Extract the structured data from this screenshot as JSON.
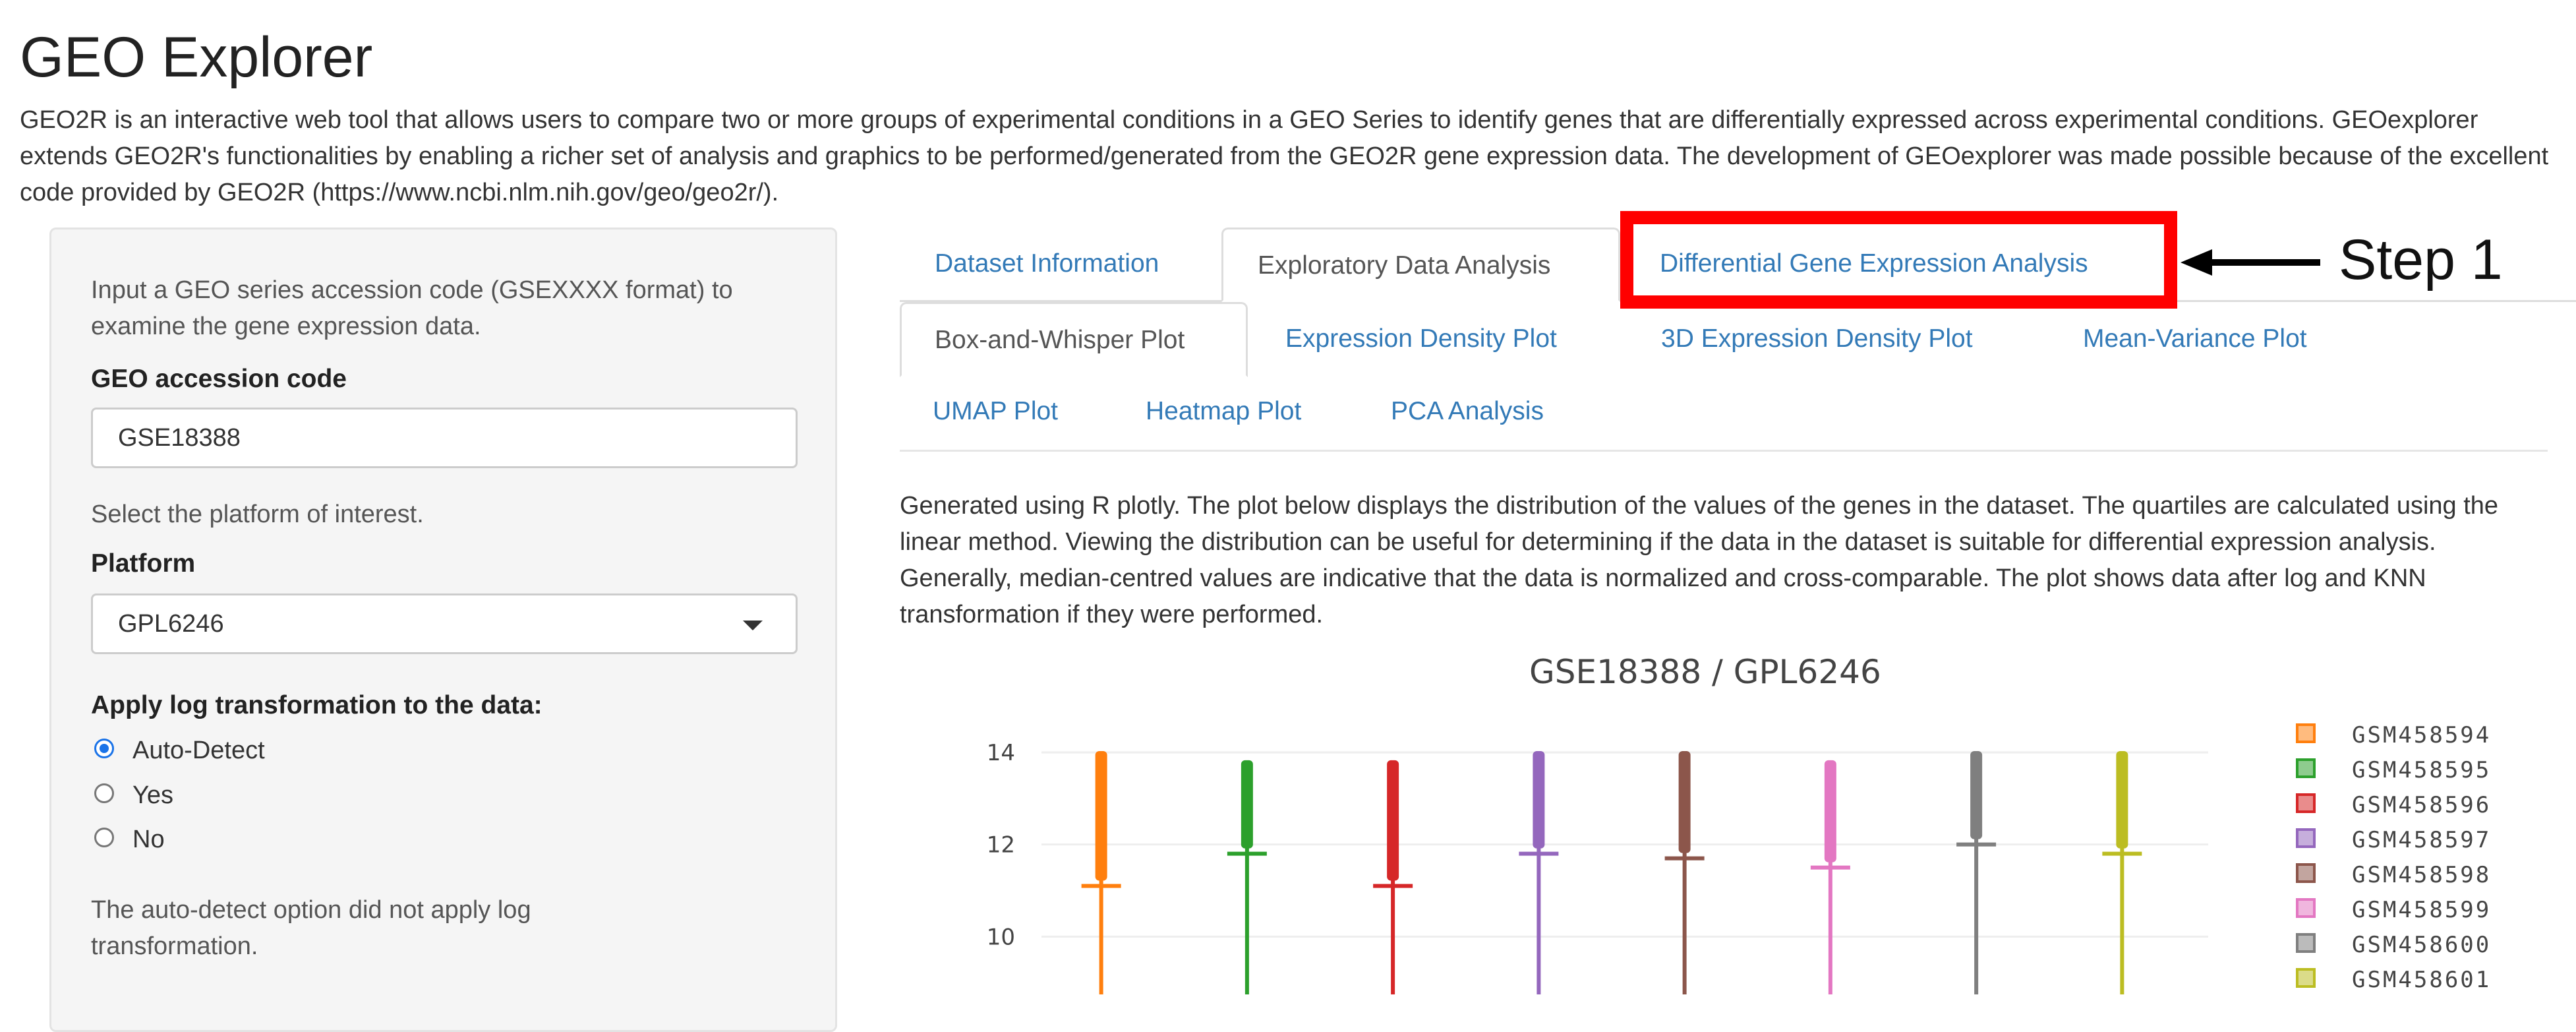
{
  "app": {
    "title": "GEO Explorer",
    "intro": "GEO2R is an interactive web tool that allows users to compare two or more groups of experimental conditions in a GEO Series to identify genes that are differentially expressed across experimental conditions. GEOexplorer extends GEO2R's functionalities by enabling a richer set of analysis and graphics to be performed/generated from the GEO2R gene expression data. The development of GEOexplorer was made possible because of the excellent code provided by GEO2R (https://www.ncbi.nlm.nih.gov/geo/geo2r/)."
  },
  "sidebar": {
    "accession_help": "Input a GEO series accession code (GSEXXXX format) to examine the gene expression data.",
    "accession_label": "GEO accession code",
    "accession_value": "GSE18388",
    "platform_help": "Select the platform of interest.",
    "platform_label": "Platform",
    "platform_value": "GPL6246",
    "log_label": "Apply log transformation to the data:",
    "log_options": [
      "Auto-Detect",
      "Yes",
      "No"
    ],
    "log_selected": "Auto-Detect",
    "log_note": "The auto-detect option did not apply log transformation."
  },
  "main_tabs": [
    "Dataset Information",
    "Exploratory Data Analysis",
    "Differential Gene Expression Analysis"
  ],
  "main_tab_active": "Exploratory Data Analysis",
  "sub_tabs": [
    "Box-and-Whisper Plot",
    "Expression Density Plot",
    "3D Expression Density Plot",
    "Mean-Variance Plot",
    "UMAP Plot",
    "Heatmap Plot",
    "PCA Analysis"
  ],
  "sub_tab_active": "Box-and-Whisper Plot",
  "annotation": {
    "step_label": "Step 1",
    "highlight_color": "#ff0000"
  },
  "description": "Generated using R plotly. The plot below displays the distribution of the values of the genes in the dataset. The quartiles are calculated using the linear method. Viewing the distribution can be useful for determining if the data in the dataset is suitable for differential expression analysis. Generally, median-centred values are indicative that the data is normalized and cross-comparable. The plot shows data after log and KNN transformation if they were performed.",
  "chart_data": {
    "type": "box",
    "title": "GSE18388 / GPL6246",
    "ylim": [
      7.6,
      14.3
    ],
    "yticks": [
      8,
      10,
      12,
      14
    ],
    "grid": true,
    "legend_position": "right",
    "series": [
      {
        "name": "GSM458594",
        "color": "#ff7f0e",
        "max": 14.0,
        "q3": 11.1
      },
      {
        "name": "GSM458595",
        "color": "#2ca02c",
        "max": 13.8,
        "q3": 11.8
      },
      {
        "name": "GSM458596",
        "color": "#d62728",
        "max": 13.8,
        "q3": 11.1
      },
      {
        "name": "GSM458597",
        "color": "#9467bd",
        "max": 14.0,
        "q3": 11.8
      },
      {
        "name": "GSM458598",
        "color": "#8c564b",
        "max": 14.0,
        "q3": 11.7
      },
      {
        "name": "GSM458599",
        "color": "#e377c2",
        "max": 13.8,
        "q3": 11.5
      },
      {
        "name": "GSM458600",
        "color": "#7f7f7f",
        "max": 14.0,
        "q3": 12.0
      },
      {
        "name": "GSM458601",
        "color": "#bcbd22",
        "max": 14.0,
        "q3": 11.8
      }
    ]
  }
}
